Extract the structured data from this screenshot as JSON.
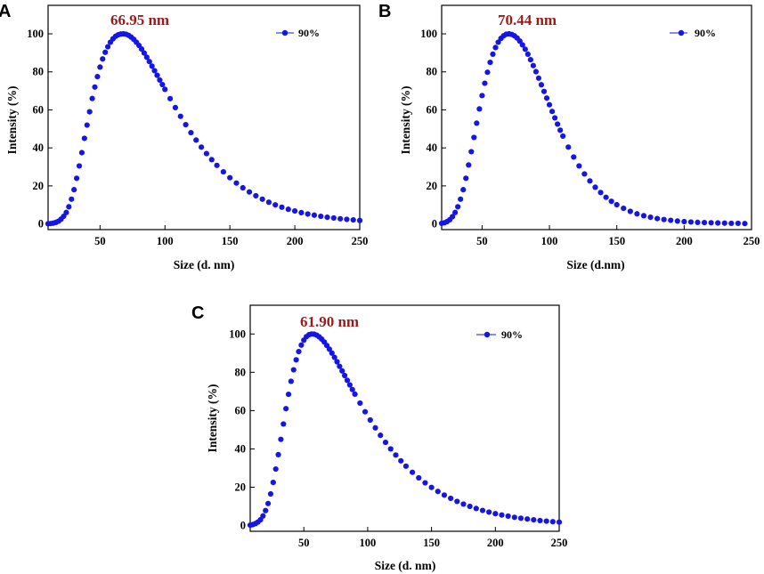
{
  "figure": {
    "panels": [
      "A",
      "B",
      "C"
    ]
  },
  "style": {
    "series_color": "#1515e8",
    "peak_color": "#9b1b1b",
    "axis_color": "#000000"
  },
  "chart_data": [
    {
      "panel": "A",
      "type": "scatter",
      "title": "",
      "annotation": "66.95 nm",
      "xlabel": "Size (d. nm)",
      "ylabel": "Intensity (%)",
      "xlim": [
        10,
        250
      ],
      "ylim": [
        -3,
        115
      ],
      "xticks": [
        50,
        100,
        150,
        200,
        250
      ],
      "yticks": [
        0,
        20,
        40,
        60,
        80,
        100
      ],
      "legend": "90%",
      "legend_position": "top-right",
      "series": [
        {
          "name": "90%",
          "x": [
            10,
            12,
            14,
            16,
            18,
            20,
            22,
            24,
            26,
            28,
            30,
            32,
            34,
            36,
            38,
            40,
            42,
            44,
            46,
            48,
            50,
            52,
            54,
            56,
            58,
            60,
            62,
            64,
            66,
            68,
            70,
            72,
            74,
            76,
            78,
            80,
            82,
            84,
            86,
            88,
            90,
            92,
            94,
            96,
            98,
            100,
            104,
            108,
            112,
            116,
            120,
            124,
            128,
            132,
            136,
            140,
            145,
            150,
            155,
            160,
            165,
            170,
            175,
            180,
            185,
            190,
            195,
            200,
            205,
            210,
            215,
            220,
            225,
            230,
            235,
            240,
            245,
            250
          ],
          "y": [
            0.1,
            0.2,
            0.4,
            0.8,
            1.4,
            2.5,
            4,
            6,
            9,
            13,
            18,
            24,
            30.5,
            37.5,
            45,
            52,
            59,
            66,
            72,
            77.5,
            82.5,
            86.8,
            90.3,
            93.2,
            95.6,
            97.4,
            98.7,
            99.5,
            99.9,
            100,
            99.8,
            99.2,
            98.3,
            97.1,
            95.6,
            93.9,
            92,
            89.9,
            87.7,
            85.4,
            83,
            80.6,
            78.2,
            75.7,
            73.3,
            70.8,
            65.9,
            61.2,
            56.6,
            52.2,
            48,
            44.1,
            40.4,
            37,
            33.8,
            30.8,
            27.4,
            24.3,
            21.5,
            19,
            16.8,
            14.8,
            13,
            11.4,
            10,
            8.8,
            7.7,
            6.8,
            5.9,
            5.2,
            4.6,
            4,
            3.5,
            3.1,
            2.7,
            2.4,
            2.1,
            1.8
          ]
        }
      ]
    },
    {
      "panel": "B",
      "type": "scatter",
      "title": "",
      "annotation": "70.44 nm",
      "xlabel": "Size (d.nm)",
      "ylabel": "Intensity (%)",
      "xlim": [
        20,
        250
      ],
      "ylim": [
        -3,
        115
      ],
      "xticks": [
        50,
        100,
        150,
        200,
        250
      ],
      "yticks": [
        0,
        20,
        40,
        60,
        80,
        100
      ],
      "legend": "90%",
      "legend_position": "top-right",
      "series": [
        {
          "name": "90%",
          "x": [
            20,
            22,
            24,
            26,
            28,
            30,
            32,
            34,
            36,
            38,
            40,
            42,
            44,
            46,
            48,
            50,
            52,
            54,
            56,
            58,
            60,
            62,
            64,
            66,
            68,
            70,
            72,
            74,
            76,
            78,
            80,
            82,
            84,
            86,
            88,
            90,
            92,
            94,
            96,
            98,
            100,
            102,
            104,
            106,
            108,
            110,
            114,
            118,
            122,
            126,
            130,
            134,
            138,
            142,
            146,
            150,
            155,
            160,
            165,
            170,
            175,
            180,
            185,
            190,
            195,
            200,
            205,
            210,
            215,
            220,
            225,
            230,
            235,
            240,
            245
          ],
          "y": [
            0.3,
            0.6,
            1.2,
            2.2,
            3.8,
            6,
            9,
            13,
            18,
            24,
            31,
            38,
            45.5,
            53,
            60.5,
            67.5,
            74,
            79.8,
            85,
            89.3,
            92.8,
            95.6,
            97.6,
            99,
            99.8,
            100,
            99.7,
            99,
            97.8,
            96.2,
            94.2,
            91.9,
            89.3,
            86.4,
            83.3,
            80.1,
            76.7,
            73.2,
            69.7,
            66.2,
            62.7,
            59.2,
            55.8,
            52.5,
            49.3,
            46.2,
            40.4,
            35.2,
            30.5,
            26.3,
            22.6,
            19.3,
            16.5,
            14,
            11.9,
            10.1,
            8.2,
            6.6,
            5.3,
            4.3,
            3.5,
            2.8,
            2.3,
            1.9,
            1.5,
            1.2,
            1,
            0.8,
            0.7,
            0.6,
            0.5,
            0.4,
            0.3,
            0.3,
            0.2
          ]
        }
      ]
    },
    {
      "panel": "C",
      "type": "scatter",
      "title": "",
      "annotation": "61.90 nm",
      "xlabel": "Size (d. nm)",
      "ylabel": "Intensity (%)",
      "xlim": [
        8,
        250
      ],
      "ylim": [
        -3,
        115
      ],
      "xticks": [
        50,
        100,
        150,
        200,
        250
      ],
      "yticks": [
        0,
        20,
        40,
        60,
        80,
        100
      ],
      "legend": "90%",
      "legend_position": "top-right",
      "series": [
        {
          "name": "90%",
          "x": [
            8,
            10,
            12,
            14,
            16,
            18,
            20,
            22,
            24,
            26,
            28,
            30,
            32,
            34,
            36,
            38,
            40,
            42,
            44,
            46,
            48,
            50,
            52,
            54,
            56,
            58,
            60,
            62,
            64,
            66,
            68,
            70,
            72,
            74,
            76,
            78,
            80,
            82,
            84,
            86,
            88,
            90,
            94,
            98,
            102,
            106,
            110,
            114,
            118,
            122,
            126,
            130,
            135,
            140,
            145,
            150,
            155,
            160,
            165,
            170,
            175,
            180,
            185,
            190,
            195,
            200,
            205,
            210,
            215,
            220,
            225,
            230,
            235,
            240,
            245,
            250
          ],
          "y": [
            0.2,
            0.5,
            1,
            1.8,
            3,
            5,
            7.8,
            11.5,
            16.5,
            22.5,
            29.5,
            37,
            45,
            53,
            61,
            68.5,
            75.3,
            81.3,
            86.5,
            90.8,
            94.2,
            96.8,
            98.6,
            99.6,
            100,
            99.9,
            99.4,
            98.5,
            97.3,
            95.8,
            94,
            92.1,
            90,
            87.8,
            85.5,
            83.1,
            80.7,
            78.3,
            75.8,
            73.4,
            71,
            68.6,
            63.9,
            59.4,
            55.1,
            51,
            47.1,
            43.4,
            40,
            36.8,
            33.8,
            31,
            27.8,
            24.9,
            22.3,
            19.9,
            17.8,
            15.9,
            14.2,
            12.6,
            11.2,
            10,
            8.9,
            7.9,
            7,
            6.2,
            5.5,
            4.9,
            4.3,
            3.8,
            3.4,
            3,
            2.6,
            2.3,
            2,
            1.8
          ]
        }
      ]
    }
  ]
}
